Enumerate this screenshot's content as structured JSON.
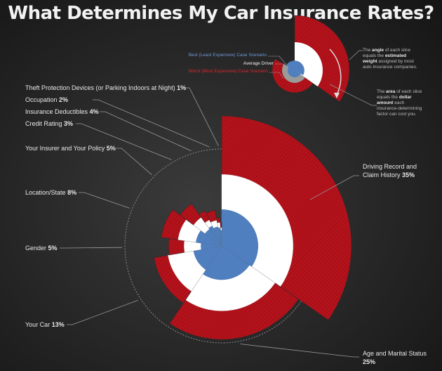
{
  "title": "What Determines My Car Insurance Rates?",
  "legend": {
    "best": "Best (Least Expensive) Case Scenario",
    "average": "Average Driver",
    "worst": "Worst (Most Expensive) Case Scenario"
  },
  "notes": {
    "angle_pre": "The ",
    "angle_b1": "angle",
    "angle_mid": " of each slice equals the ",
    "angle_b2": "estimated weight",
    "angle_post": " assigned by most auto insurance companies.",
    "area_pre": "The ",
    "area_b1": "area",
    "area_mid": " of each slice equals the ",
    "area_b2": "dollar amount",
    "area_post": " each insurance-determining factor can cost you."
  },
  "colors": {
    "best": "#4f7fbf",
    "average": "#ffffff",
    "worst": "#b5121b"
  },
  "chart_data": {
    "type": "pie",
    "title": "What Determines My Car Insurance Rates?",
    "series_names": [
      "Best (Least Expensive) Case Scenario",
      "Average Driver",
      "Worst (Most Expensive) Case Scenario"
    ],
    "slices": [
      {
        "name": "Driving Record and Claim History",
        "pct": "35%",
        "weight": 35,
        "best": 0.28,
        "average": 0.55,
        "worst": 1.0
      },
      {
        "name": "Age and Marital Status",
        "pct": "25%",
        "weight": 25,
        "best": 0.26,
        "average": 0.5,
        "worst": 0.72
      },
      {
        "name": "Your Car",
        "pct": "13%",
        "weight": 13,
        "best": 0.22,
        "average": 0.42,
        "worst": 0.53
      },
      {
        "name": "Gender",
        "pct": "5%",
        "weight": 5,
        "best": 0.16,
        "average": 0.29,
        "worst": 0.41
      },
      {
        "name": "Location/State",
        "pct": "8%",
        "weight": 8,
        "best": 0.2,
        "average": 0.34,
        "worst": 0.47
      },
      {
        "name": "Your Insurer and Your Policy",
        "pct": "5%",
        "weight": 5,
        "best": 0.16,
        "average": 0.27,
        "worst": 0.4
      },
      {
        "name": "Credit Rating",
        "pct": "3%",
        "weight": 3,
        "best": 0.17,
        "average": 0.22,
        "worst": 0.3
      },
      {
        "name": "Insurance Deductibles",
        "pct": "4%",
        "weight": 4,
        "best": 0.15,
        "average": 0.2,
        "worst": 0.28
      },
      {
        "name": "Occupation",
        "pct": "2%",
        "weight": 2,
        "best": 0.14,
        "average": 0.18,
        "worst": 0.22
      },
      {
        "name": "Theft Protection Devices (or Parking Indoors at Night)",
        "pct": "1%",
        "weight": 1,
        "best": 0.12,
        "average": 0.14,
        "worst": 0.18
      }
    ]
  }
}
